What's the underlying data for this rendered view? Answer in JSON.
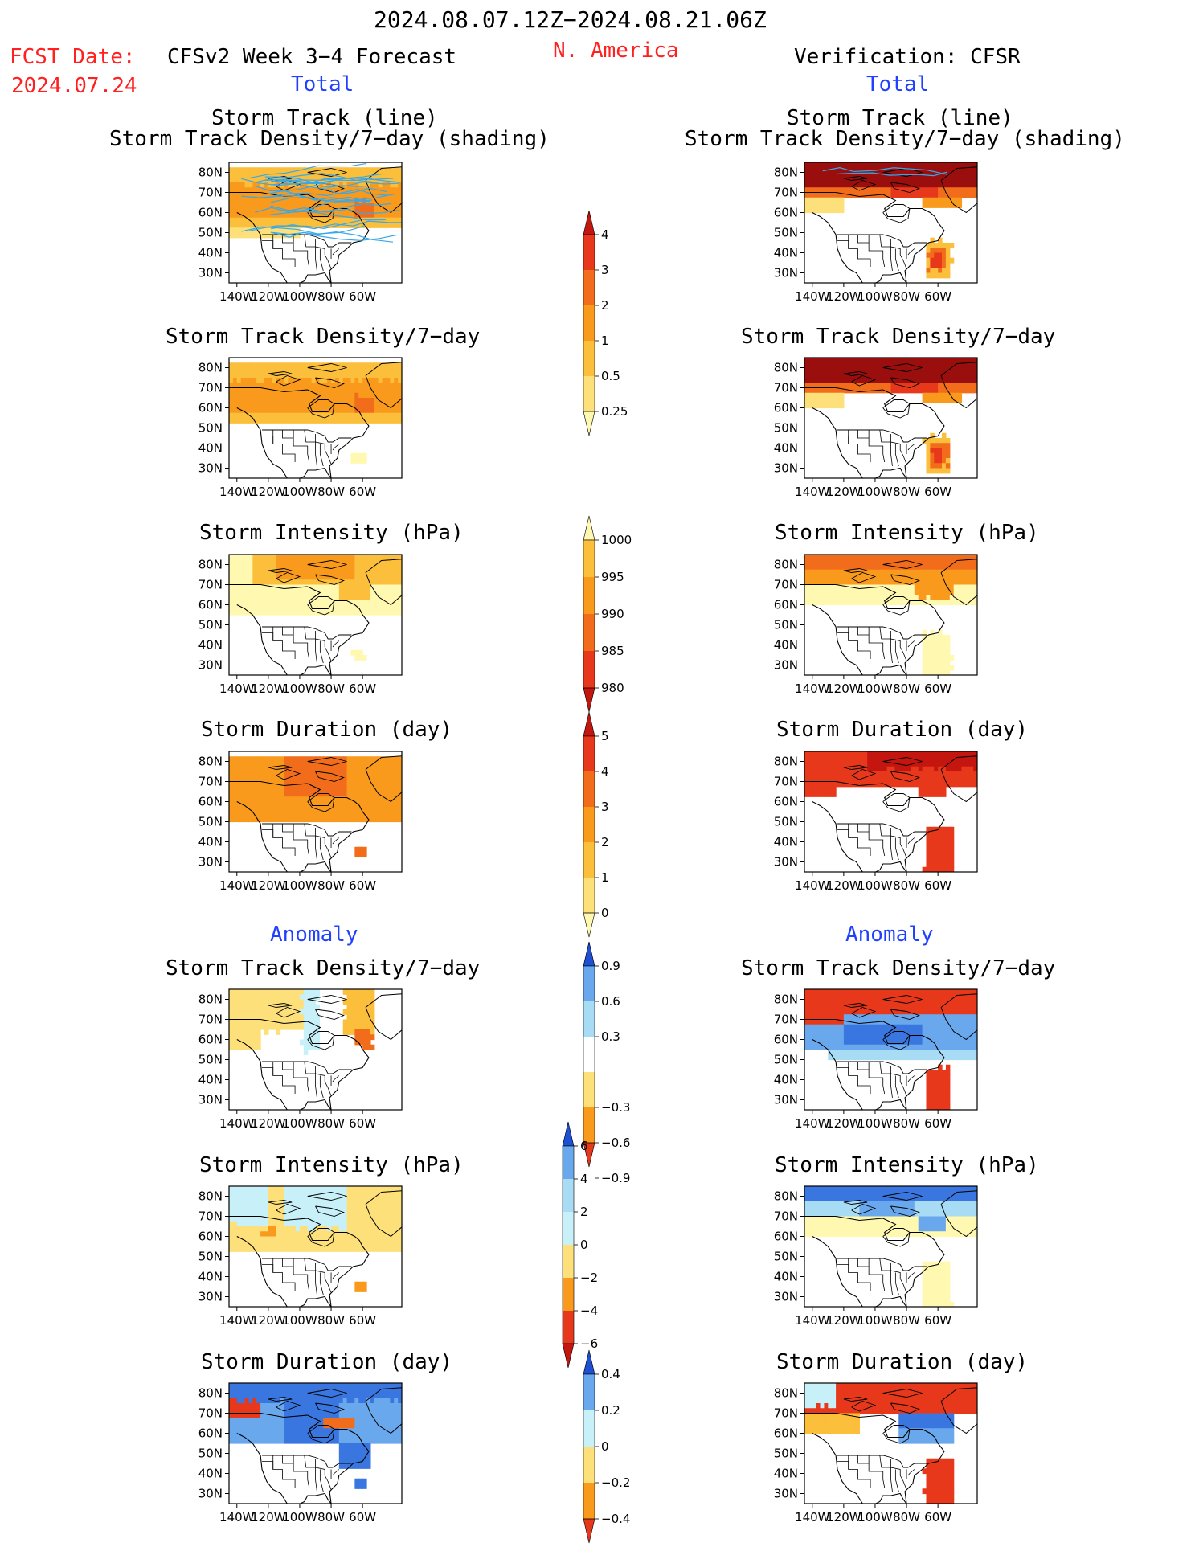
{
  "header": {
    "date_range": "2024.08.07.12Z−2024.08.21.06Z",
    "region": "N. America",
    "fcst_date_label": "FCST Date:",
    "fcst_date_value": "2024.07.24",
    "model_title": "CFSv2 Week 3−4 Forecast",
    "verification_title": "Verification: CFSR",
    "left_total_label": "Total",
    "right_total_label": "Total",
    "left_anomaly_label": "Anomaly",
    "right_anomaly_label": "Anomaly"
  },
  "panel_titles": {
    "track_line_1": "Storm Track (line)",
    "track_line_2": "Storm Track Density/7−day (shading)",
    "density": "Storm Track Density/7−day",
    "intensity": "Storm Intensity (hPa)",
    "duration": "Storm Duration (day)"
  },
  "map_axes": {
    "lat_labels": [
      "80N",
      "70N",
      "60N",
      "50N",
      "40N",
      "30N"
    ],
    "lon_labels": [
      "140W",
      "120W",
      "100W",
      "80W",
      "60W"
    ]
  },
  "colors": {
    "pale_yellow": "#fff8b0",
    "yellow": "#fde07a",
    "light_orange": "#fbbf3c",
    "orange": "#f99a1c",
    "dark_orange": "#f26d1b",
    "red": "#e8381c",
    "dark_red": "#c4160f",
    "maroon": "#9a0e0e",
    "pale_blue": "#c8f0f8",
    "light_blue": "#a7dcf4",
    "mid_blue": "#6aa8ee",
    "blue": "#3a76e0",
    "dark_blue": "#1f4fd2",
    "track_line": "#3aa8e8"
  },
  "colorbars": {
    "density_total": [
      "0.25",
      "0.5",
      "1",
      "2",
      "3",
      "4"
    ],
    "intensity_total": [
      "1000",
      "995",
      "990",
      "985",
      "980"
    ],
    "duration_total": [
      "0",
      "1",
      "2",
      "3",
      "4",
      "5"
    ],
    "density_anomaly": [
      "0.9",
      "0.6",
      "0.3",
      "−0.3",
      "−0.6",
      "−0.9"
    ],
    "intensity_anomaly": [
      "6",
      "4",
      "2",
      "0",
      "−2",
      "−4",
      "−6"
    ],
    "duration_anomaly": [
      "0.4",
      "0.2",
      "0",
      "−0.2",
      "−0.4"
    ]
  },
  "chart_data": [
    {
      "type": "heatmap",
      "panel": "forecast_total_track",
      "title": "Storm Track (line) / Storm Track Density/7-day (shading)",
      "units": "per 7 days",
      "field_summary": {
        "max_value": 3,
        "max_region": "Labrador Sea / Hudson Bay 60-65N 60W",
        "band": "55-80N"
      },
      "storm_tracks": "many zonal tracks 50-75N"
    },
    {
      "type": "heatmap",
      "panel": "verification_total_track",
      "title": "Storm Track (line) / Storm Track Density/7-day (shading)",
      "units": "per 7 days",
      "field_summary": {
        "max_value": 4,
        "max_region": "Arctic 75-80N",
        "secondary_max_value": 3,
        "secondary_max_region": "Atlantic 35N 62W"
      }
    },
    {
      "type": "heatmap",
      "panel": "forecast_total_density",
      "units": "per 7 days",
      "field_summary": {
        "max_value": 3,
        "band": "55-80N"
      }
    },
    {
      "type": "heatmap",
      "panel": "verification_total_density",
      "units": "per 7 days",
      "field_summary": {
        "max_value": 4,
        "band": "70-80N",
        "secondary_max_region": "Atlantic 35N 62W"
      }
    },
    {
      "type": "heatmap",
      "panel": "forecast_total_intensity",
      "units": "hPa",
      "field_summary": {
        "range": [
          990,
          1000
        ]
      }
    },
    {
      "type": "heatmap",
      "panel": "verification_total_intensity",
      "units": "hPa",
      "field_summary": {
        "range": [
          985,
          1000
        ]
      }
    },
    {
      "type": "heatmap",
      "panel": "forecast_total_duration",
      "units": "day",
      "field_summary": {
        "range": [
          2,
          4
        ]
      }
    },
    {
      "type": "heatmap",
      "panel": "verification_total_duration",
      "units": "day",
      "field_summary": {
        "range": [
          3,
          5
        ]
      }
    },
    {
      "type": "heatmap",
      "panel": "forecast_anomaly_density",
      "units": "per 7 days",
      "field_summary": {
        "range": [
          -0.3,
          0.9
        ]
      }
    },
    {
      "type": "heatmap",
      "panel": "verification_anomaly_density",
      "units": "per 7 days",
      "field_summary": {
        "range": [
          -0.9,
          0.9
        ],
        "negative_region": "Canada 50-70N",
        "positive_region": "Arctic and Atlantic coast"
      }
    },
    {
      "type": "heatmap",
      "panel": "forecast_anomaly_intensity",
      "units": "hPa",
      "field_summary": {
        "range": [
          -2,
          4
        ]
      }
    },
    {
      "type": "heatmap",
      "panel": "verification_anomaly_intensity",
      "units": "hPa",
      "field_summary": {
        "range": [
          -6,
          2
        ]
      }
    },
    {
      "type": "heatmap",
      "panel": "forecast_anomaly_duration",
      "units": "day",
      "field_summary": {
        "range": [
          -0.4,
          0.4
        ]
      }
    },
    {
      "type": "heatmap",
      "panel": "verification_anomaly_duration",
      "units": "day",
      "field_summary": {
        "range": [
          -0.4,
          0.4
        ]
      }
    }
  ]
}
